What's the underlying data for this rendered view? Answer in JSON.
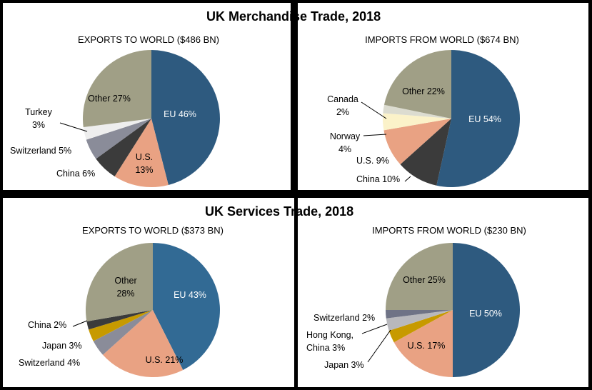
{
  "titles": {
    "merchandise": "UK Merchandise Trade, 2018",
    "services": "UK Services Trade, 2018"
  },
  "chart_data": [
    {
      "type": "pie",
      "title": "EXPORTS TO WORLD ($486 BN)",
      "slices": [
        {
          "name": "EU",
          "value": 46,
          "label": [
            "EU 46%"
          ],
          "color": "#2e5a7f"
        },
        {
          "name": "U.S.",
          "value": 13,
          "label": [
            "U.S.",
            "13%"
          ],
          "color": "#e9a283"
        },
        {
          "name": "China",
          "value": 6,
          "label": [
            "China 6%"
          ],
          "color": "#3b3b3b"
        },
        {
          "name": "Switzerland",
          "value": 5,
          "label": [
            "Switzerland 5%"
          ],
          "color": "#8a8c99"
        },
        {
          "name": "Turkey",
          "value": 3,
          "label": [
            "Turkey",
            "3%"
          ],
          "color": "#eeeeee"
        },
        {
          "name": "Other",
          "value": 27,
          "label": [
            "Other 27%"
          ],
          "color": "#a09f86"
        }
      ]
    },
    {
      "type": "pie",
      "title": "IMPORTS FROM WORLD ($674 BN)",
      "slices": [
        {
          "name": "EU",
          "value": 54,
          "label": [
            "EU 54%"
          ],
          "color": "#2e5a7f"
        },
        {
          "name": "China",
          "value": 10,
          "label": [
            "China 10%"
          ],
          "color": "#3b3b3b"
        },
        {
          "name": "U.S.",
          "value": 9,
          "label": [
            "U.S. 9%"
          ],
          "color": "#e9a283"
        },
        {
          "name": "Norway",
          "value": 4,
          "label": [
            "Norway",
            "4%"
          ],
          "color": "#fbf2c9"
        },
        {
          "name": "Canada",
          "value": 2,
          "label": [
            "Canada",
            "2%"
          ],
          "color": "#dcdcd0"
        },
        {
          "name": "Other",
          "value": 22,
          "label": [
            "Other 22%"
          ],
          "color": "#a09f86"
        }
      ]
    },
    {
      "type": "pie",
      "title": "EXPORTS TO WORLD ($373 BN)",
      "slices": [
        {
          "name": "EU",
          "value": 43,
          "label": [
            "EU  43%"
          ],
          "color": "#326a94"
        },
        {
          "name": "U.S.",
          "value": 21,
          "label": [
            "U.S. 21%"
          ],
          "color": "#e9a283"
        },
        {
          "name": "Switzerland",
          "value": 4,
          "label": [
            "Switzerland 4%"
          ],
          "color": "#8a8c99"
        },
        {
          "name": "Japan",
          "value": 3,
          "label": [
            "Japan 3%"
          ],
          "color": "#c79a00"
        },
        {
          "name": "China",
          "value": 2,
          "label": [
            "China 2%"
          ],
          "color": "#3b3b3b"
        },
        {
          "name": "Other",
          "value": 28,
          "label": [
            "Other",
            "28%"
          ],
          "color": "#a09f86"
        }
      ]
    },
    {
      "type": "pie",
      "title": "IMPORTS FROM WORLD ($230 BN)",
      "slices": [
        {
          "name": "EU",
          "value": 50,
          "label": [
            "EU 50%"
          ],
          "color": "#2e5a7f"
        },
        {
          "name": "U.S.",
          "value": 17,
          "label": [
            "U.S. 17%"
          ],
          "color": "#e9a283"
        },
        {
          "name": "Japan",
          "value": 3,
          "label": [
            "Japan 3%"
          ],
          "color": "#c79a00"
        },
        {
          "name": "Hong Kong, China",
          "value": 3,
          "label": [
            "Hong Kong,",
            "China 3%"
          ],
          "color": "#b8b8bc"
        },
        {
          "name": "Switzerland",
          "value": 2,
          "label": [
            "Switzerland 2%"
          ],
          "color": "#6f7386"
        },
        {
          "name": "Other",
          "value": 25,
          "label": [
            "Other 25%"
          ],
          "color": "#a09f86"
        }
      ]
    }
  ]
}
